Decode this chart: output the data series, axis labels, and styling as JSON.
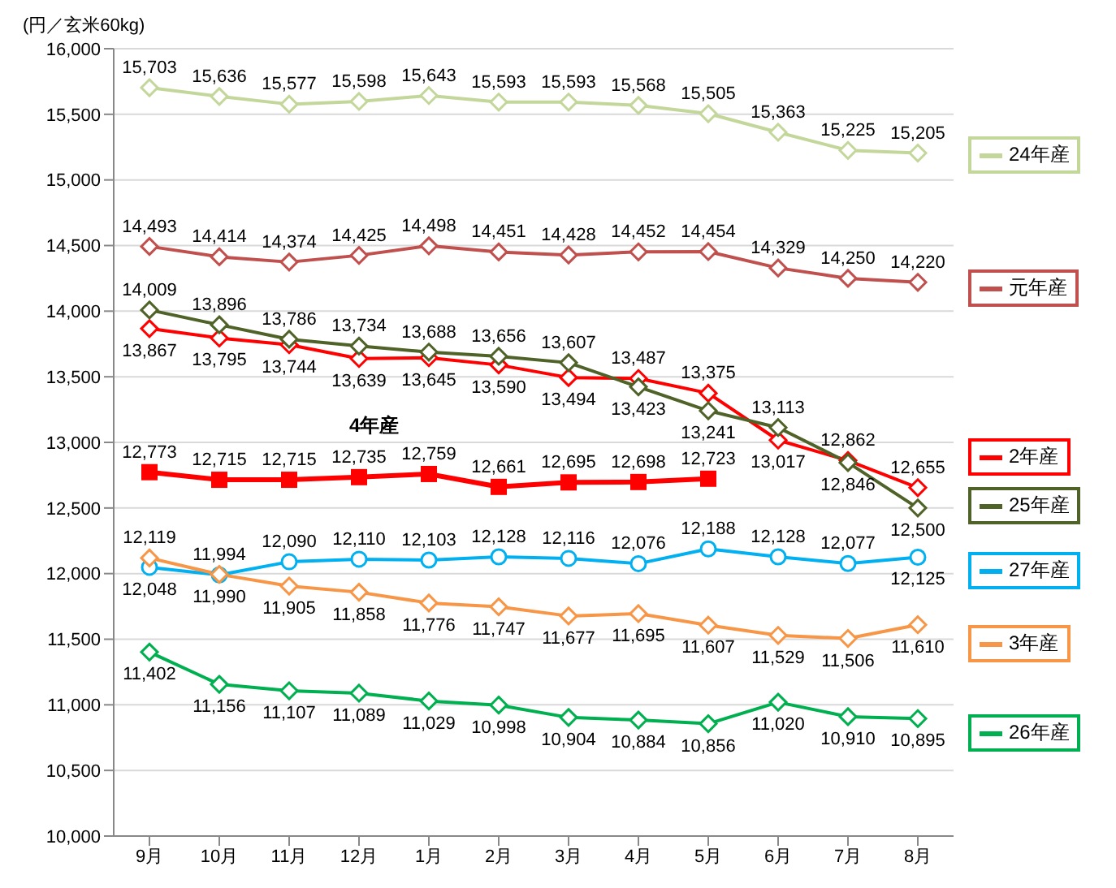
{
  "chart_data": {
    "type": "line",
    "ylabel": "(円／玄米60kg)",
    "categories": [
      "9月",
      "10月",
      "11月",
      "12月",
      "1月",
      "2月",
      "3月",
      "4月",
      "5月",
      "6月",
      "7月",
      "8月"
    ],
    "ylim": [
      10000,
      16000
    ],
    "yticks": [
      {
        "value": 10000,
        "label": "10,000"
      },
      {
        "value": 10500,
        "label": "10,500"
      },
      {
        "value": 11000,
        "label": "11,000"
      },
      {
        "value": 11500,
        "label": "11,500"
      },
      {
        "value": 12000,
        "label": "12,000"
      },
      {
        "value": 12500,
        "label": "12,500"
      },
      {
        "value": 13000,
        "label": "13,000"
      },
      {
        "value": 13500,
        "label": "13,500"
      },
      {
        "value": 14000,
        "label": "14,000"
      },
      {
        "value": 14500,
        "label": "14,500"
      },
      {
        "value": 15000,
        "label": "15,000"
      },
      {
        "value": 15500,
        "label": "15,500"
      },
      {
        "value": 16000,
        "label": "16,000"
      }
    ],
    "grid": "y",
    "legend": "right",
    "series": [
      {
        "name": "24年産",
        "color": "#c4d79b",
        "marker": "diamond",
        "values": [
          15703,
          15636,
          15577,
          15598,
          15643,
          15593,
          15593,
          15568,
          15505,
          15363,
          15225,
          15205
        ],
        "value_labels": [
          "15,703",
          "15,636",
          "15,577",
          "15,598",
          "15,643",
          "15,593",
          "15,593",
          "15,568",
          "15,505",
          "15,363",
          "15,225",
          "15,205"
        ]
      },
      {
        "name": "元年産",
        "color": "#c0504d",
        "marker": "diamond",
        "values": [
          14493,
          14414,
          14374,
          14425,
          14498,
          14451,
          14428,
          14452,
          14454,
          14329,
          14250,
          14220
        ],
        "value_labels": [
          "14,493",
          "14,414",
          "14,374",
          "14,425",
          "14,498",
          "14,451",
          "14,428",
          "14,452",
          "14,454",
          "14,329",
          "14,250",
          "14,220"
        ]
      },
      {
        "name": "2年産",
        "color": "#ff0000",
        "marker": "diamond",
        "values": [
          13867,
          13795,
          13744,
          13639,
          13645,
          13590,
          13494,
          13487,
          13375,
          13017,
          12862,
          12655
        ],
        "value_labels": [
          "13,867",
          "13,795",
          "13,744",
          "13,639",
          "13,645",
          "13,590",
          "13,494",
          "13,487",
          "13,375",
          "13,017",
          "12,862",
          "12,655"
        ]
      },
      {
        "name": "25年産",
        "color": "#4f6228",
        "marker": "diamond",
        "values": [
          14009,
          13896,
          13786,
          13734,
          13688,
          13656,
          13607,
          13423,
          13241,
          13113,
          12846,
          12500
        ],
        "value_labels": [
          "14,009",
          "13,896",
          "13,786",
          "13,734",
          "13,688",
          "13,656",
          "13,607",
          "13,423",
          "13,241",
          "13,113",
          "12,846",
          "12,500"
        ]
      },
      {
        "name": "4年産",
        "color": "#ff0000",
        "marker": "square",
        "values": [
          12773,
          12715,
          12715,
          12735,
          12759,
          12661,
          12695,
          12698,
          12723,
          null,
          null,
          null
        ],
        "value_labels": [
          "12,773",
          "12,715",
          "12,715",
          "12,735",
          "12,759",
          "12,661",
          "12,695",
          "12,698",
          "12,723",
          null,
          null,
          null
        ]
      },
      {
        "name": "27年産",
        "color": "#00b0f0",
        "marker": "circle",
        "values": [
          12048,
          11990,
          12090,
          12110,
          12103,
          12128,
          12116,
          12076,
          12188,
          12128,
          12077,
          12125
        ],
        "value_labels": [
          "12,048",
          "11,990",
          "12,090",
          "12,110",
          "12,103",
          "12,128",
          "12,116",
          "12,076",
          "12,188",
          "12,128",
          "12,077",
          "12,125"
        ]
      },
      {
        "name": "3年産",
        "color": "#f79646",
        "marker": "diamond",
        "values": [
          12119,
          11994,
          11905,
          11858,
          11776,
          11747,
          11677,
          11695,
          11607,
          11529,
          11506,
          11610
        ],
        "value_labels": [
          "12,119",
          "11,994",
          "11,905",
          "11,858",
          "11,776",
          "11,747",
          "11,677",
          "11,695",
          "11,607",
          "11,529",
          "11,506",
          "11,610"
        ]
      },
      {
        "name": "26年産",
        "color": "#00b050",
        "marker": "diamond",
        "values": [
          11402,
          11156,
          11107,
          11089,
          11029,
          10998,
          10904,
          10884,
          10856,
          11020,
          10910,
          10895
        ],
        "value_labels": [
          "11,402",
          "11,156",
          "11,107",
          "11,089",
          "11,029",
          "10,998",
          "10,904",
          "10,884",
          "10,856",
          "11,020",
          "10,910",
          "10,895"
        ]
      }
    ]
  }
}
